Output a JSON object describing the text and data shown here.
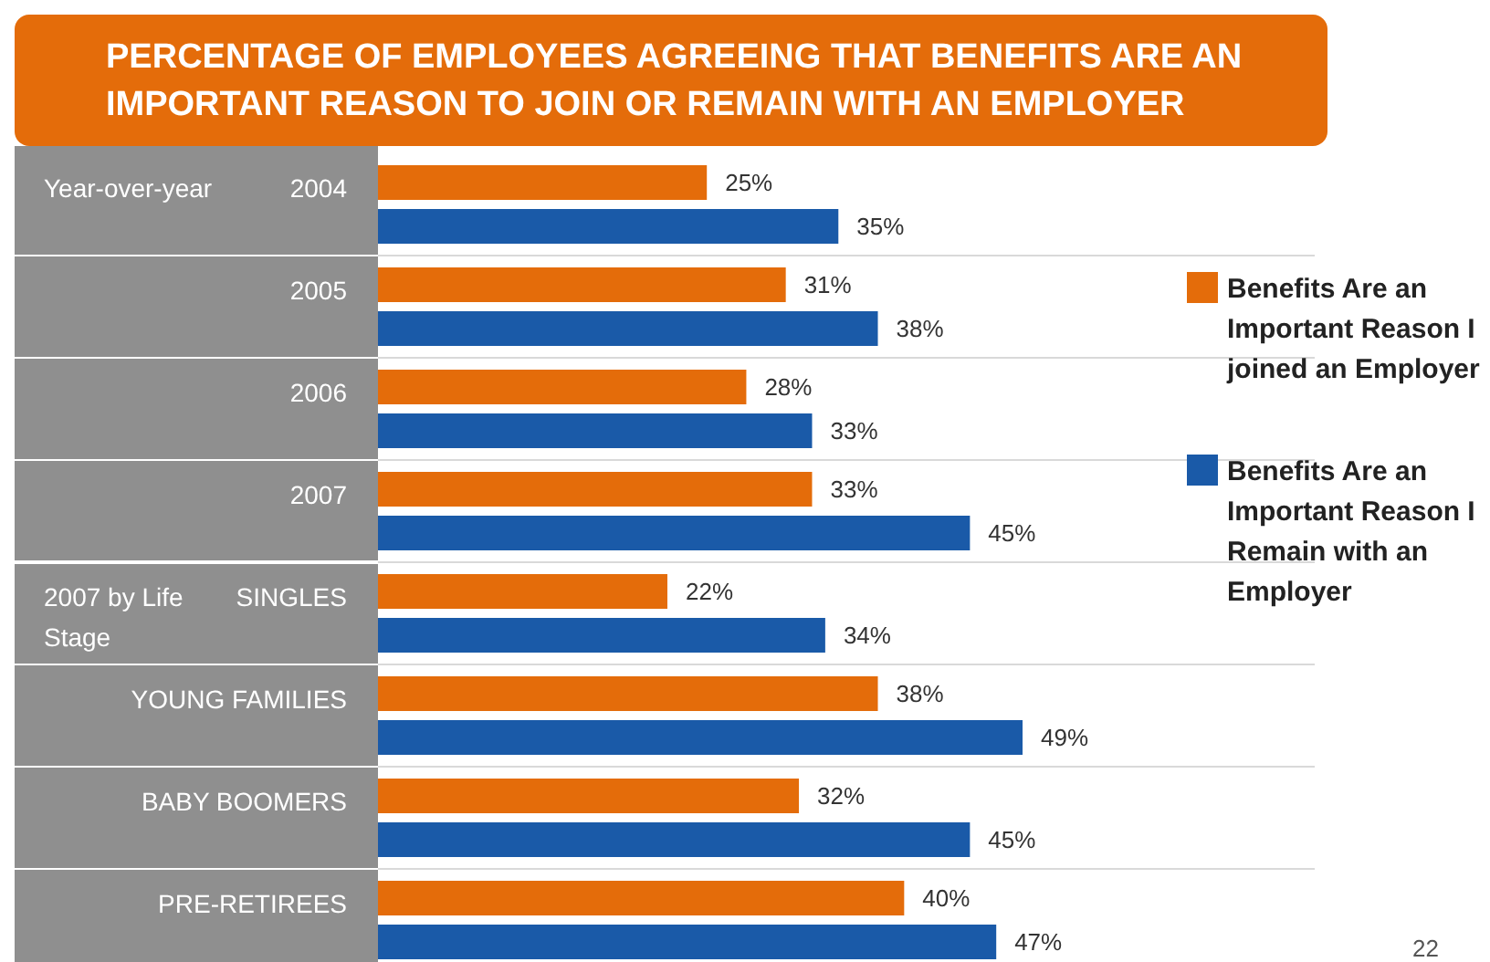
{
  "chart_data": {
    "type": "bar",
    "orientation": "horizontal",
    "title": "PERCENTAGE OF EMPLOYEES AGREEING THAT BENEFITS ARE AN IMPORTANT REASON TO JOIN OR REMAIN WITH AN EMPLOYER",
    "categories": [
      "2004",
      "2005",
      "2006",
      "2007",
      "SINGLES",
      "YOUNG FAMILIES",
      "BABY BOOMERS",
      "PRE-RETIREES"
    ],
    "series": [
      {
        "name": "Benefits Are an Important Reason I joined an Employer",
        "color": "#e46c0a",
        "values": [
          25,
          31,
          28,
          33,
          22,
          38,
          32,
          40
        ],
        "value_labels": [
          "25%",
          "31%",
          "28%",
          "33%",
          "22%",
          "38%",
          "32%",
          "40%"
        ]
      },
      {
        "name": "Benefits Are an Important Reason I Remain with an Employer",
        "color": "#1a5aa8",
        "values": [
          35,
          38,
          33,
          45,
          34,
          49,
          45,
          47
        ],
        "value_labels": [
          "35%",
          "38%",
          "33%",
          "45%",
          "34%",
          "49%",
          "45%",
          "47%"
        ]
      }
    ],
    "annotations": [
      "Year-over-year",
      "2007 by Life Stage",
      "22"
    ],
    "legend": "right"
  }
}
